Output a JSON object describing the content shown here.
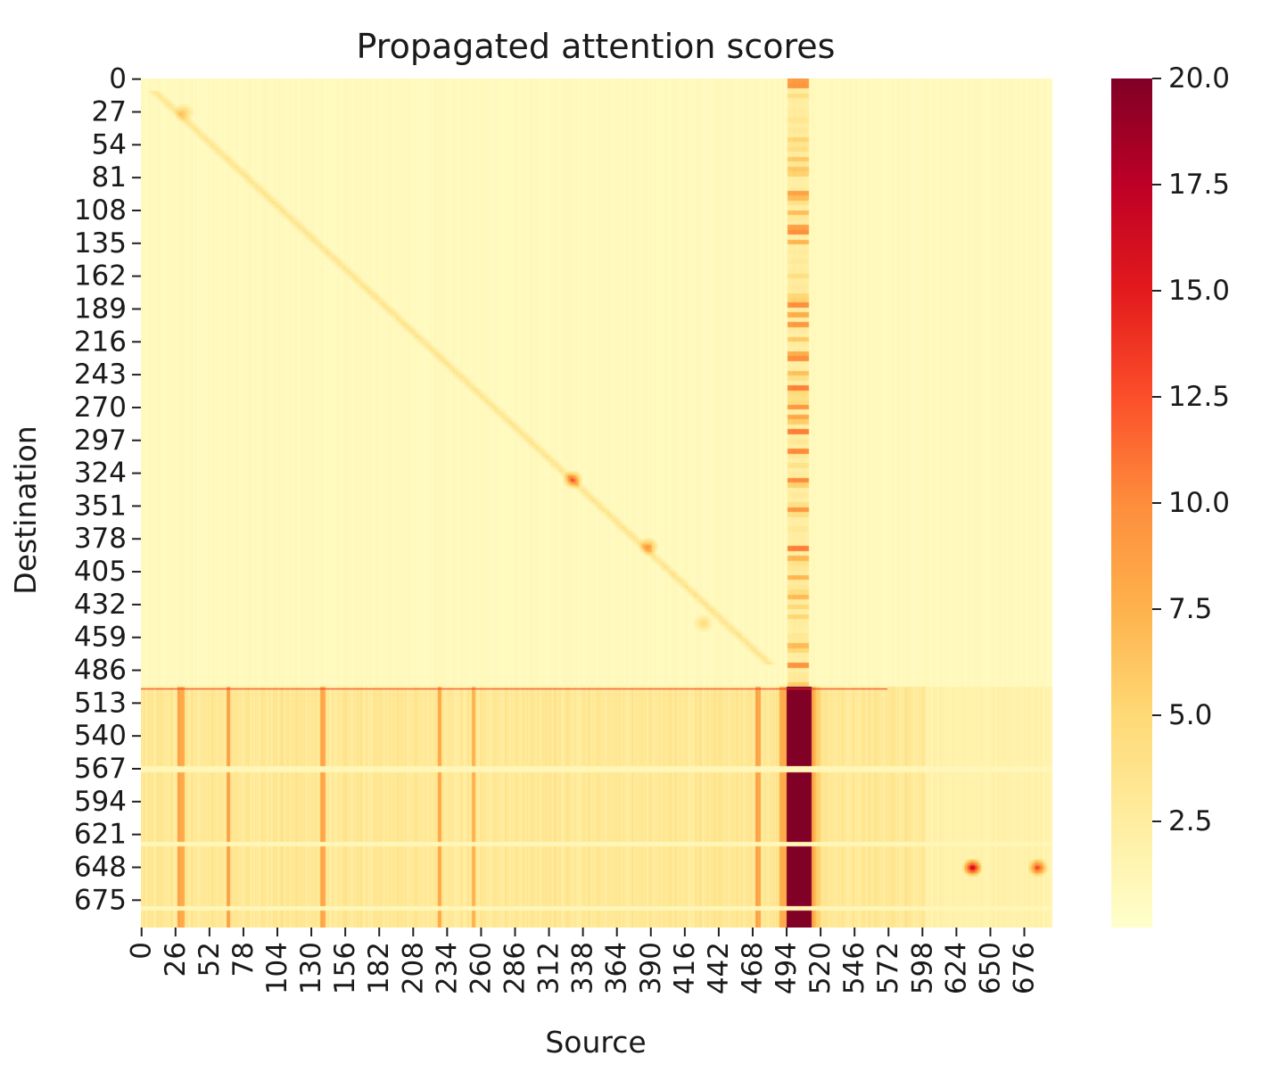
{
  "chart_data": {
    "type": "heatmap",
    "title": "Propagated attention scores",
    "xlabel": "Source",
    "ylabel": "Destination",
    "n_rows": 698,
    "n_cols": 698,
    "x_ticks": [
      0,
      26,
      52,
      78,
      104,
      130,
      156,
      182,
      208,
      234,
      260,
      286,
      312,
      338,
      364,
      390,
      416,
      442,
      468,
      494,
      520,
      546,
      572,
      598,
      624,
      650,
      676
    ],
    "y_ticks": [
      0,
      27,
      54,
      81,
      108,
      135,
      162,
      189,
      216,
      243,
      270,
      297,
      324,
      351,
      378,
      405,
      432,
      459,
      486,
      513,
      540,
      567,
      594,
      621,
      648,
      675
    ],
    "colorbar": {
      "min": 0,
      "max": 20.0,
      "ticks": [
        "2.5",
        "5.0",
        "7.5",
        "10.0",
        "12.5",
        "15.0",
        "17.5",
        "20.0"
      ],
      "colormap": "YlOrRd",
      "colors": [
        "#ffffcc",
        "#ffeda0",
        "#fed976",
        "#feb24c",
        "#fd8d3c",
        "#fc4e2a",
        "#e31a1c",
        "#bd0026",
        "#800026"
      ]
    },
    "features": {
      "background_value": 0.6,
      "diagonal_band": {
        "from": [
          10,
          10
        ],
        "to": [
          480,
          480
        ],
        "value": 3.5
      },
      "hot_column": {
        "cols": [
          494,
          512
        ],
        "rows_start": 500,
        "value": 20.0
      },
      "hot_column_upper": {
        "cols": [
          495,
          510
        ],
        "rows": [
          0,
          500
        ],
        "value": 10.0
      },
      "hot_row": {
        "row": 501,
        "cols": [
          0,
          570
        ],
        "value": 14.0
      },
      "lower_region": {
        "rows_start": 501,
        "value": 3.0
      },
      "stripe_columns": [
        [
          28,
          32
        ],
        [
          65,
          67
        ],
        [
          137,
          140
        ],
        [
          227,
          229
        ],
        [
          253,
          255
        ],
        [
          470,
          473
        ]
      ],
      "light_rows": [
        [
          565,
          569
        ],
        [
          627,
          630
        ],
        [
          680,
          683
        ]
      ],
      "blobs": [
        {
          "row": 27,
          "col": 32,
          "value": 5
        },
        {
          "row": 329,
          "col": 330,
          "value": 10
        },
        {
          "row": 384,
          "col": 388,
          "value": 8
        },
        {
          "row": 447,
          "col": 430,
          "value": 4
        },
        {
          "row": 648,
          "col": 636,
          "value": 16
        },
        {
          "row": 648,
          "col": 686,
          "value": 12
        }
      ]
    }
  }
}
